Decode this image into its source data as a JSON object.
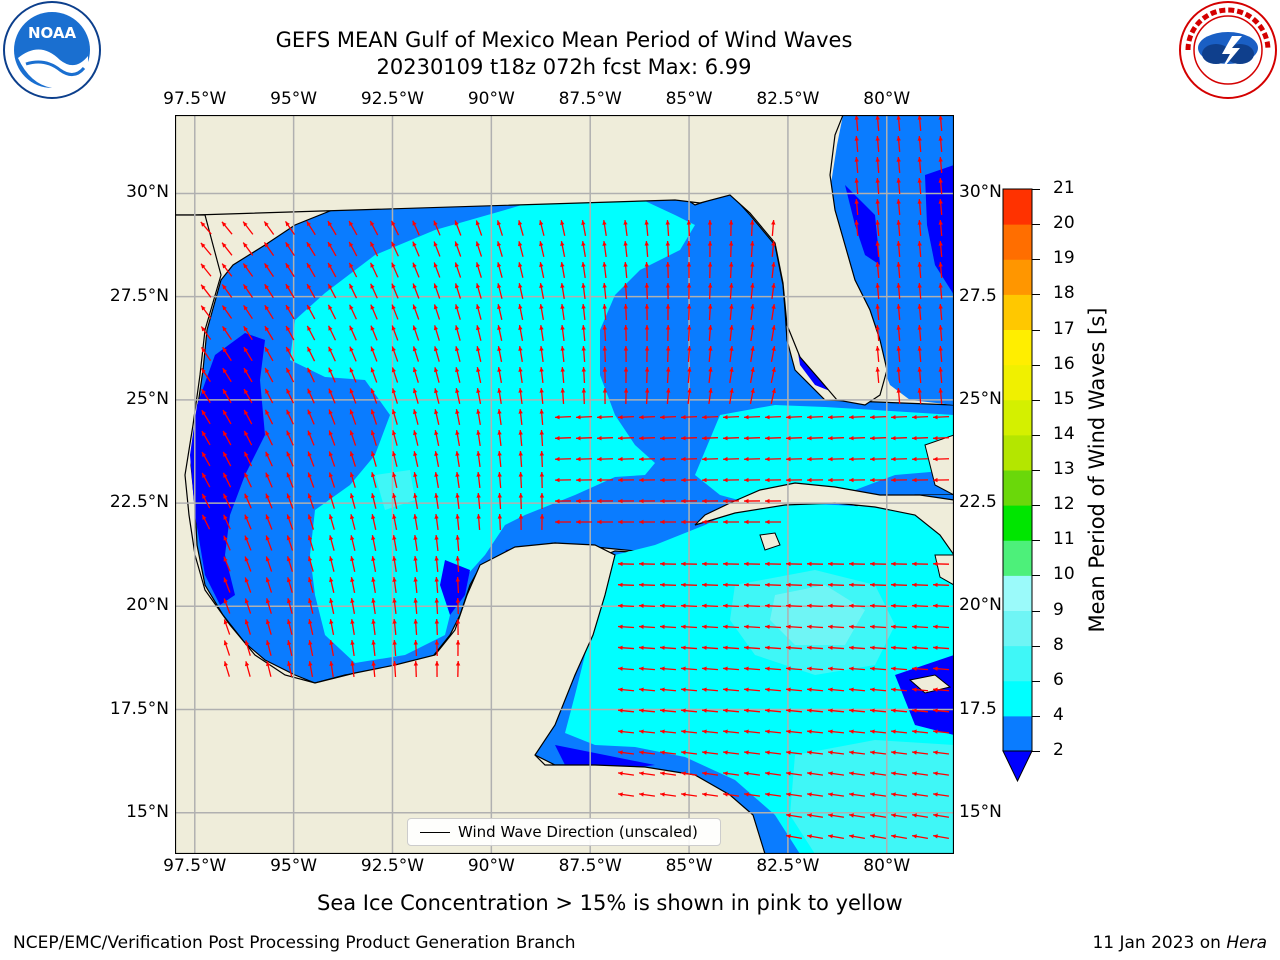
{
  "title": {
    "line1": "GEFS MEAN Gulf of Mexico Mean Period of Wind Waves",
    "line2": "20230109 t18z 072h fcst   Max: 6.99"
  },
  "axes": {
    "lon_labels": [
      "97.5°W",
      "95°W",
      "92.5°W",
      "90°W",
      "87.5°W",
      "85°W",
      "82.5°W",
      "80°W"
    ],
    "lat_labels_left": [
      "30°N",
      "27.5°N",
      "25°N",
      "22.5°N",
      "20°N",
      "17.5°N",
      "15°N"
    ],
    "lat_labels_right": [
      "30°N",
      "27.5",
      "25°N",
      "22.5",
      "20°N",
      "17.5",
      "15°N"
    ]
  },
  "map": {
    "lon_range": [
      -98.0,
      -78.3
    ],
    "lat_range": [
      14.0,
      31.9
    ],
    "land_color": "#efedda",
    "grid_color": "#b0b0b0",
    "arrow_color": "#ff0000"
  },
  "colorbar": {
    "label": "Mean Period of Wind Waves [s]",
    "ticks": [
      "2",
      "4",
      "6",
      "8",
      "9",
      "10",
      "11",
      "12",
      "13",
      "14",
      "15",
      "16",
      "17",
      "18",
      "19",
      "20",
      "21"
    ],
    "colors": [
      "#0a7cff",
      "#00ffff",
      "#3ff7f7",
      "#6ff5f5",
      "#9bfafa",
      "#4df07a",
      "#00e600",
      "#6ad80a",
      "#b4e600",
      "#d4f000",
      "#f0f000",
      "#ffee00",
      "#ffc800",
      "#ff9600",
      "#ff6e00",
      "#ff3200",
      "#ff0000"
    ],
    "under_color": "#0000ff"
  },
  "legend": {
    "label": "Wind Wave Direction (unscaled)"
  },
  "note": "Sea Ice Concentration > 15% is shown in pink to yellow",
  "footer": {
    "left": "NCEP/EMC/Verification Post Processing Product Generation Branch",
    "date": "11 Jan 2023 on ",
    "host": "Hera"
  },
  "logos": {
    "left": {
      "name": "NOAA",
      "ring_text": "NATIONAL OCEANIC AND ATMOSPHERIC ADMINISTRATION · U.S. DEPARTMENT OF COMMERCE"
    },
    "right": {
      "ring_text": "NATIONAL WEATHER SERVICE"
    }
  }
}
